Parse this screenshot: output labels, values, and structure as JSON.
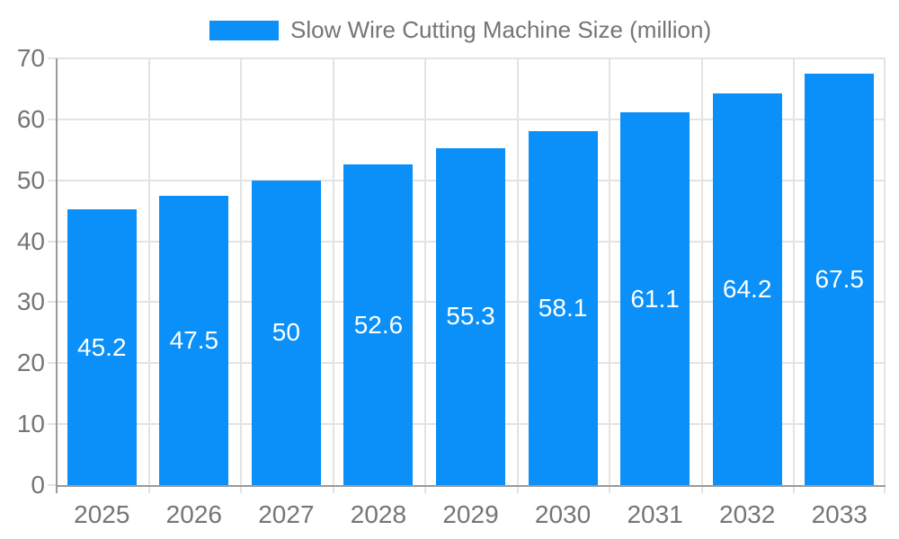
{
  "legend": {
    "label": "Slow Wire Cutting Machine Size (million)"
  },
  "colors": {
    "bar": "#0a90f8",
    "grid": "#e3e3e3",
    "axis": "#9a9a9a",
    "tick": "#dcdcdc",
    "tick_label": "#757575",
    "legend_text": "#757575",
    "value_label": "#ffffff",
    "background": "#ffffff"
  },
  "chart_data": {
    "type": "bar",
    "title": "Slow Wire Cutting Machine Size (million)",
    "xlabel": "",
    "ylabel": "",
    "categories": [
      "2025",
      "2026",
      "2027",
      "2028",
      "2029",
      "2030",
      "2031",
      "2032",
      "2033"
    ],
    "values": [
      45.2,
      47.5,
      50,
      52.6,
      55.3,
      58.1,
      61.1,
      64.2,
      67.5
    ],
    "value_labels": [
      "45.2",
      "47.5",
      "50",
      "52.6",
      "55.3",
      "58.1",
      "61.1",
      "64.2",
      "67.5"
    ],
    "ylim": [
      0,
      70
    ],
    "yticks": [
      0,
      10,
      20,
      30,
      40,
      50,
      60,
      70
    ],
    "grid": true,
    "legend_position": "top",
    "value_label_position": "center-inside"
  }
}
